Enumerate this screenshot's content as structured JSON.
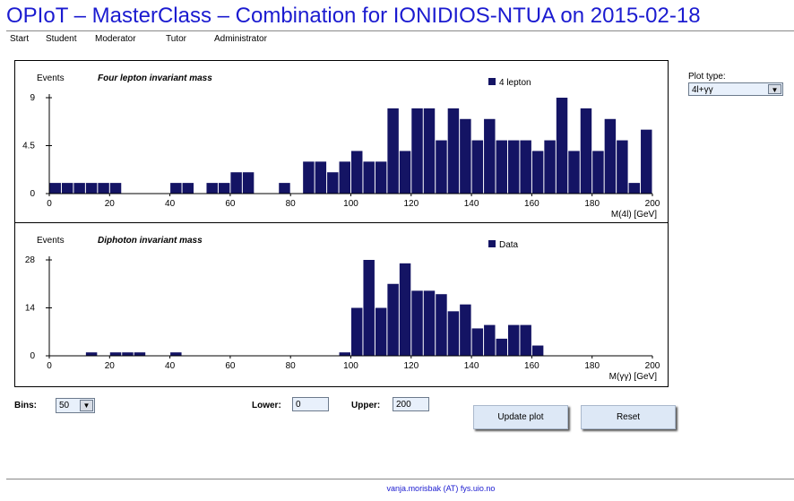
{
  "page_title": "OPIoT – MasterClass – Combination for IONIDIOS-NTUA on 2015-02-18",
  "nav": [
    "Start",
    "Student",
    "Moderator",
    "Tutor",
    "Administrator"
  ],
  "plot_type": {
    "label": "Plot type:",
    "value": "4l+γγ"
  },
  "controls": {
    "bins_label": "Bins:",
    "bins_value": "50",
    "lower_label": "Lower:",
    "lower_value": "0",
    "upper_label": "Upper:",
    "upper_value": "200",
    "update_button": "Update plot",
    "reset_button": "Reset"
  },
  "footer": "vanja.morisbak (AT) fys.uio.no",
  "colors": {
    "bar": "#141464",
    "title": "#1b1bd0",
    "button": "#dde8f6"
  },
  "chart_data": [
    {
      "type": "bar",
      "title": "Four lepton invariant mass",
      "ylabel": "Events",
      "xlabel": "M(4l) [GeV]",
      "legend": "4 lepton",
      "legend_position": "top-right",
      "xlim": [
        0,
        200
      ],
      "ylim": [
        0,
        9
      ],
      "yticks": [
        0,
        4.5,
        9
      ],
      "xticks": [
        0,
        20,
        40,
        60,
        80,
        100,
        120,
        140,
        160,
        180,
        200
      ],
      "bin_width": 4,
      "x": [
        0,
        4,
        8,
        12,
        16,
        20,
        24,
        28,
        32,
        36,
        40,
        44,
        48,
        52,
        56,
        60,
        64,
        68,
        72,
        76,
        80,
        84,
        88,
        92,
        96,
        100,
        104,
        108,
        112,
        116,
        120,
        124,
        128,
        132,
        136,
        140,
        144,
        148,
        152,
        156,
        160,
        164,
        168,
        172,
        176,
        180,
        184,
        188,
        192,
        196
      ],
      "values": [
        1,
        1,
        1,
        1,
        1,
        1,
        0,
        0,
        0,
        0,
        1,
        1,
        0,
        1,
        1,
        2,
        2,
        0,
        0,
        1,
        0,
        3,
        3,
        2,
        3,
        4,
        3,
        3,
        8,
        4,
        8,
        8,
        5,
        8,
        7,
        5,
        7,
        5,
        5,
        5,
        4,
        5,
        9,
        4,
        8,
        4,
        7,
        5,
        1,
        6
      ]
    },
    {
      "type": "bar",
      "title": "Diphoton invariant mass",
      "ylabel": "Events",
      "xlabel": "M(γγ) [GeV]",
      "legend": "Data",
      "legend_position": "top-right",
      "xlim": [
        0,
        200
      ],
      "ylim": [
        0,
        28
      ],
      "yticks": [
        0,
        14,
        28
      ],
      "xticks": [
        0,
        20,
        40,
        60,
        80,
        100,
        120,
        140,
        160,
        180,
        200
      ],
      "bin_width": 4,
      "x": [
        0,
        4,
        8,
        12,
        16,
        20,
        24,
        28,
        32,
        36,
        40,
        44,
        48,
        52,
        56,
        60,
        64,
        68,
        72,
        76,
        80,
        84,
        88,
        92,
        96,
        100,
        104,
        108,
        112,
        116,
        120,
        124,
        128,
        132,
        136,
        140,
        144,
        148,
        152,
        156,
        160,
        164,
        168,
        172,
        176,
        180,
        184,
        188,
        192,
        196
      ],
      "values": [
        0,
        0,
        0,
        1,
        0,
        1,
        1,
        1,
        0,
        0,
        1,
        0,
        0,
        0,
        0,
        0,
        0,
        0,
        0,
        0,
        0,
        0,
        0,
        0,
        1,
        14,
        28,
        14,
        21,
        27,
        19,
        19,
        18,
        13,
        15,
        8,
        9,
        5,
        9,
        9,
        3,
        0,
        0,
        0,
        0,
        0,
        0,
        0,
        0,
        0
      ]
    }
  ]
}
